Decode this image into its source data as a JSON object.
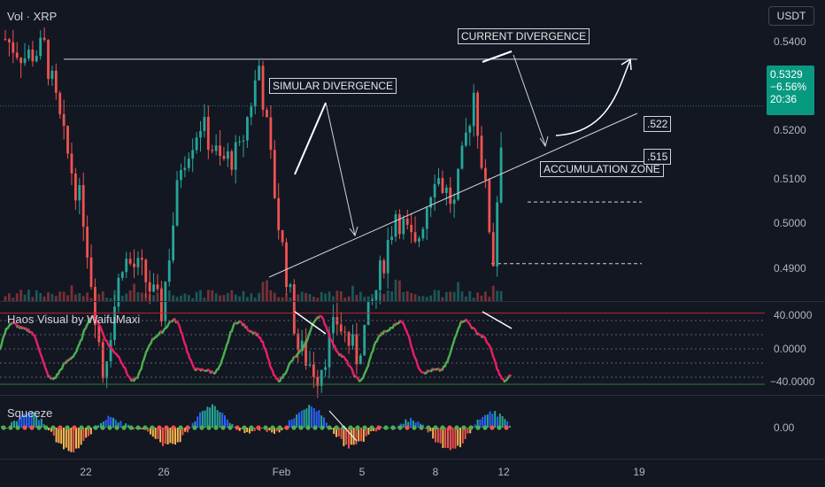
{
  "symbol_label": "Vol · XRP",
  "currency": "USDT",
  "price_badge": {
    "price": "0.5329",
    "change": "−6.56%",
    "timer": "20:36",
    "color": "#089981"
  },
  "price_axis_ticks": [
    "0.5400",
    "0.5300",
    "0.5200",
    "0.5100",
    "0.5000",
    "0.4900"
  ],
  "osc_label": "Haos Visual by WaifuMaxi",
  "osc_ticks": [
    "40.0000",
    "0.0000",
    "−40.0000"
  ],
  "squeeze_label": "Squeeze",
  "squeeze_tick": "0.00",
  "date_ticks": [
    "22",
    "26",
    "Feb",
    "5",
    "8",
    "12",
    "19"
  ],
  "annotations": {
    "similar_divergence": "SIMULAR DIVERGENCE",
    "current_divergence": "CURRENT DIVERGENCE",
    "accumulation_zone": "ACCUMULATION ZONE",
    "level_522": ".522",
    "level_515": ".515"
  },
  "colors": {
    "up": "#26a69a",
    "down": "#ef5350",
    "osc_up": "#4caf50",
    "osc_down": "#e91e63",
    "background": "#131722"
  },
  "chart_data": [
    {
      "type": "candlestick",
      "title": "XRP / USDT",
      "ylim": [
        0.4855,
        0.5445
      ],
      "x_range": [
        "Jan 18",
        "Feb 21"
      ],
      "levels": [
        0.5382,
        0.522,
        0.515
      ],
      "annotations": [
        "SIMULAR DIVERGENCE",
        "CURRENT DIVERGENCE",
        "ACCUMULATION ZONE",
        ".522",
        ".515"
      ],
      "close_path": [
        {
          "x": "Jan 18",
          "y": 0.5405
        },
        {
          "x": "Jan 19",
          "y": 0.5385
        },
        {
          "x": "Jan 20",
          "y": 0.5395
        },
        {
          "x": "Jan 21",
          "y": 0.529
        },
        {
          "x": "Jan 22",
          "y": 0.5205
        },
        {
          "x": "Jan 23",
          "y": 0.5025
        },
        {
          "x": "Jan 24",
          "y": 0.5155
        },
        {
          "x": "Jan 25",
          "y": 0.514
        },
        {
          "x": "Jan 26",
          "y": 0.5095
        },
        {
          "x": "Jan 27",
          "y": 0.5265
        },
        {
          "x": "Jan 28",
          "y": 0.531
        },
        {
          "x": "Jan 29",
          "y": 0.5265
        },
        {
          "x": "Jan 30",
          "y": 0.5275
        },
        {
          "x": "Jan 31",
          "y": 0.5375
        },
        {
          "x": "Feb 1",
          "y": 0.5195
        },
        {
          "x": "Feb 2",
          "y": 0.5055
        },
        {
          "x": "Feb 3",
          "y": 0.5025
        },
        {
          "x": "Feb 4",
          "y": 0.5085
        },
        {
          "x": "Feb 5",
          "y": 0.5045
        },
        {
          "x": "Feb 6",
          "y": 0.512
        },
        {
          "x": "Feb 7",
          "y": 0.521
        },
        {
          "x": "Feb 8",
          "y": 0.5165
        },
        {
          "x": "Feb 9",
          "y": 0.5255
        },
        {
          "x": "Feb 10",
          "y": 0.5215
        },
        {
          "x": "Feb 11",
          "y": 0.5345
        },
        {
          "x": "Feb 12",
          "y": 0.5155
        },
        {
          "x": "Feb 12.5",
          "y": 0.5329
        }
      ]
    },
    {
      "type": "line",
      "title": "Haos Visual by WaifuMaxi",
      "ylim": [
        -48,
        48
      ],
      "levels": [
        40,
        20,
        0,
        -20,
        -40
      ]
    },
    {
      "type": "bar",
      "title": "Squeeze",
      "baseline": 0
    }
  ]
}
